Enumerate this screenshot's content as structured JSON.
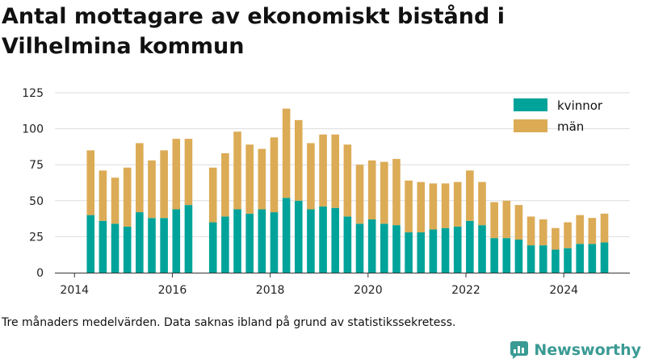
{
  "title": "Antal mottagare av ekonomiskt bistånd i Vilhelmina kommun",
  "note": "Tre månaders medelvärden. Data saknas ibland på grund av statistikssekretess.",
  "brand": {
    "name": "Newsworthy",
    "logo_icon": "newsworthy-chart-logo",
    "color": "#3a9a94"
  },
  "colors": {
    "kvinnor": "#00a39a",
    "man": "#dcab56",
    "grid": "#dddddd",
    "axis": "#333333"
  },
  "chart_data": {
    "type": "bar",
    "stacked": true,
    "title": "Antal mottagare av ekonomiskt bistånd i Vilhelmina kommun",
    "xlabel": "",
    "ylabel": "",
    "ylim": [
      0,
      125
    ],
    "yticks": [
      0,
      25,
      50,
      75,
      100,
      125
    ],
    "xlim": [
      2013.6,
      2025.35
    ],
    "xticks": [
      2014,
      2016,
      2018,
      2020,
      2022,
      2024
    ],
    "grid": "horizontal",
    "legend_position": "top-right",
    "x": [
      2014.33,
      2014.58,
      2014.83,
      2015.08,
      2015.33,
      2015.58,
      2015.83,
      2016.08,
      2016.33,
      2016.83,
      2017.08,
      2017.33,
      2017.58,
      2017.83,
      2018.08,
      2018.33,
      2018.58,
      2018.83,
      2019.08,
      2019.33,
      2019.58,
      2019.83,
      2020.08,
      2020.33,
      2020.58,
      2020.83,
      2021.08,
      2021.33,
      2021.58,
      2021.83,
      2022.08,
      2022.33,
      2022.58,
      2022.83,
      2023.08,
      2023.33,
      2023.58,
      2023.83,
      2024.08,
      2024.33,
      2024.58,
      2024.83
    ],
    "series": [
      {
        "name": "kvinnor",
        "color": "#00a39a",
        "values": [
          40,
          36,
          34,
          32,
          42,
          38,
          38,
          44,
          47,
          35,
          39,
          44,
          41,
          44,
          42,
          52,
          50,
          44,
          46,
          45,
          39,
          34,
          37,
          34,
          33,
          28,
          28,
          30,
          31,
          32,
          36,
          33,
          24,
          24,
          23,
          19,
          19,
          16,
          17,
          20,
          20,
          21
        ]
      },
      {
        "name": "män",
        "color": "#dcab56",
        "values": [
          45,
          35,
          32,
          41,
          48,
          40,
          47,
          49,
          46,
          38,
          44,
          54,
          48,
          42,
          52,
          62,
          56,
          46,
          50,
          51,
          50,
          41,
          41,
          43,
          46,
          36,
          35,
          32,
          31,
          31,
          35,
          30,
          25,
          26,
          24,
          20,
          18,
          15,
          18,
          20,
          18,
          20
        ]
      }
    ]
  }
}
